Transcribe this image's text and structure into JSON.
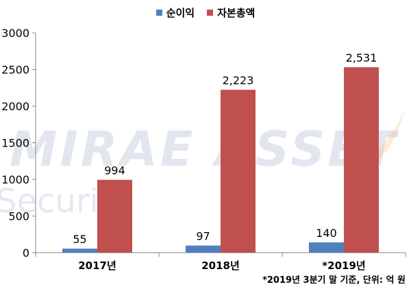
{
  "watermark": {
    "brand_line1": "MIRAE ASSET",
    "brand_line2": "Securiti"
  },
  "footnote": "*2019년 3분기 말 기준, 단위: 억 원",
  "chart_data": {
    "type": "bar",
    "categories": [
      "2017년",
      "2018년",
      "*2019년"
    ],
    "series": [
      {
        "name": "순이익",
        "values": [
          55,
          97,
          140
        ],
        "labels": [
          "55",
          "97",
          "140"
        ],
        "color": "#4F81BD"
      },
      {
        "name": "자본총액",
        "values": [
          994,
          2223,
          2531
        ],
        "labels": [
          "994",
          "2,223",
          "2,531"
        ],
        "color": "#C0504D"
      }
    ],
    "ylim": [
      0,
      3000
    ],
    "yticks": [
      "0",
      "500",
      "1000",
      "1500",
      "2000",
      "2500",
      "3000"
    ],
    "ytick_values": [
      0,
      500,
      1000,
      1500,
      2000,
      2500,
      3000
    ],
    "grid": false,
    "legend_position": "top-center",
    "title": "",
    "xlabel": "",
    "ylabel": ""
  }
}
